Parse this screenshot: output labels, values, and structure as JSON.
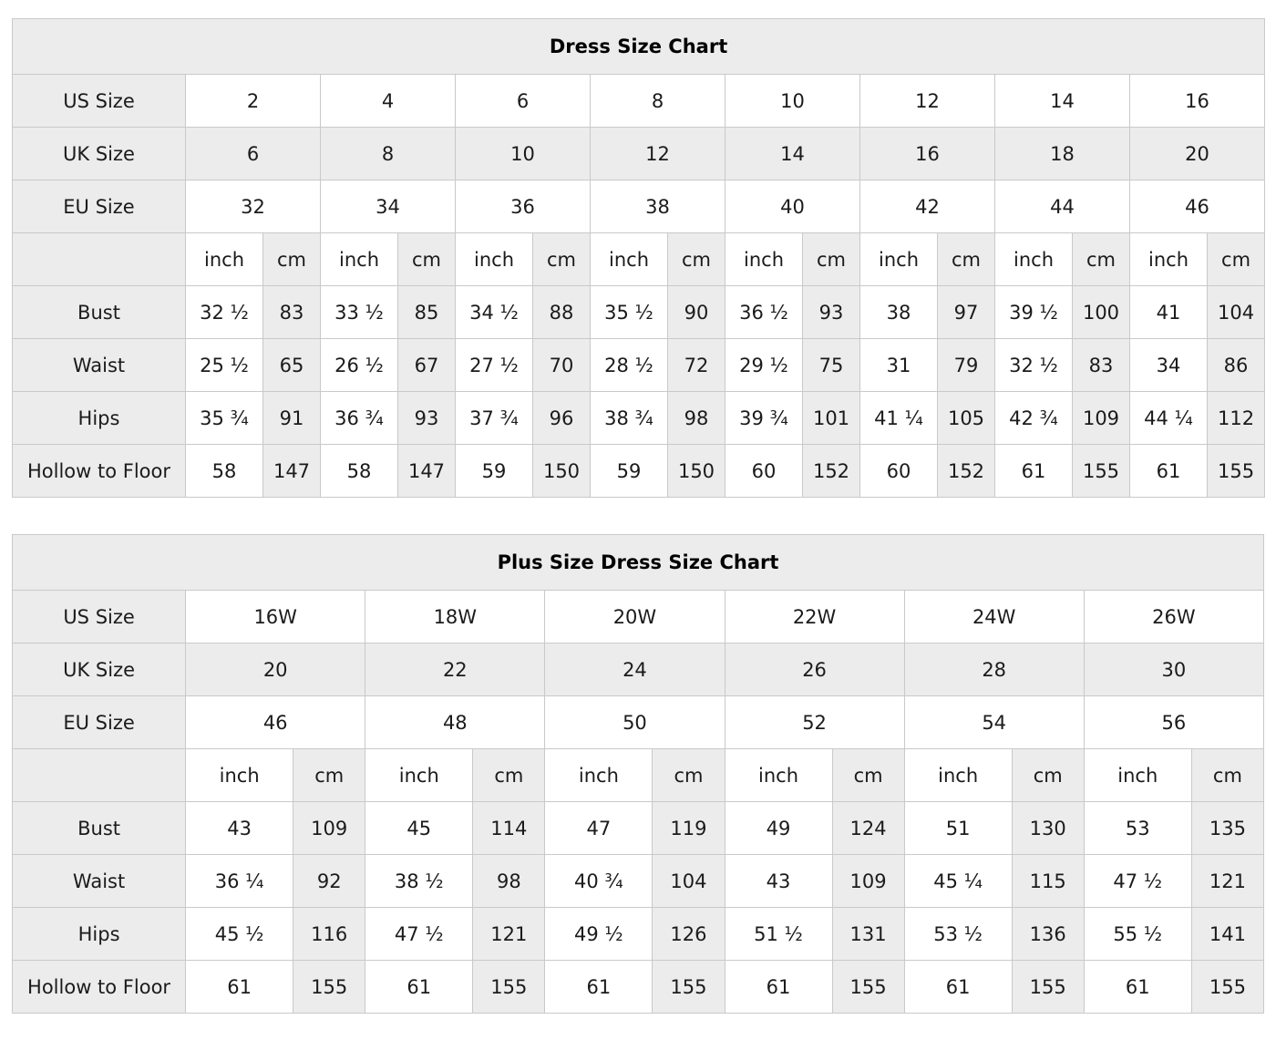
{
  "units": {
    "inch": "inch",
    "cm": "cm"
  },
  "colors": {
    "cell_shaded": "#ececec",
    "cell_white": "#ffffff",
    "border": "#c9c9c9",
    "text": "#1b1b1b"
  },
  "tables": [
    {
      "title": "Dress Size Chart",
      "unit_row_label": "",
      "size_rows": [
        {
          "label": "US Size",
          "values": [
            "2",
            "4",
            "6",
            "8",
            "10",
            "12",
            "14",
            "16"
          ]
        },
        {
          "label": "UK Size",
          "values": [
            "6",
            "8",
            "10",
            "12",
            "14",
            "16",
            "18",
            "20"
          ]
        },
        {
          "label": "EU Size",
          "values": [
            "32",
            "34",
            "36",
            "38",
            "40",
            "42",
            "44",
            "46"
          ]
        }
      ],
      "measure_rows": [
        {
          "label": "Bust",
          "pairs": [
            [
              "32 ½",
              "83"
            ],
            [
              "33 ½",
              "85"
            ],
            [
              "34 ½",
              "88"
            ],
            [
              "35 ½",
              "90"
            ],
            [
              "36 ½",
              "93"
            ],
            [
              "38",
              "97"
            ],
            [
              "39 ½",
              "100"
            ],
            [
              "41",
              "104"
            ]
          ]
        },
        {
          "label": "Waist",
          "pairs": [
            [
              "25 ½",
              "65"
            ],
            [
              "26 ½",
              "67"
            ],
            [
              "27 ½",
              "70"
            ],
            [
              "28 ½",
              "72"
            ],
            [
              "29 ½",
              "75"
            ],
            [
              "31",
              "79"
            ],
            [
              "32 ½",
              "83"
            ],
            [
              "34",
              "86"
            ]
          ]
        },
        {
          "label": "Hips",
          "pairs": [
            [
              "35 ¾",
              "91"
            ],
            [
              "36 ¾",
              "93"
            ],
            [
              "37 ¾",
              "96"
            ],
            [
              "38 ¾",
              "98"
            ],
            [
              "39 ¾",
              "101"
            ],
            [
              "41 ¼",
              "105"
            ],
            [
              "42 ¾",
              "109"
            ],
            [
              "44 ¼",
              "112"
            ]
          ]
        },
        {
          "label": "Hollow to Floor",
          "pairs": [
            [
              "58",
              "147"
            ],
            [
              "58",
              "147"
            ],
            [
              "59",
              "150"
            ],
            [
              "59",
              "150"
            ],
            [
              "60",
              "152"
            ],
            [
              "60",
              "152"
            ],
            [
              "61",
              "155"
            ],
            [
              "61",
              "155"
            ]
          ]
        }
      ]
    },
    {
      "title": "Plus Size Dress Size Chart",
      "unit_row_label": "",
      "size_rows": [
        {
          "label": "US Size",
          "values": [
            "16W",
            "18W",
            "20W",
            "22W",
            "24W",
            "26W"
          ]
        },
        {
          "label": "UK Size",
          "values": [
            "20",
            "22",
            "24",
            "26",
            "28",
            "30"
          ]
        },
        {
          "label": "EU Size",
          "values": [
            "46",
            "48",
            "50",
            "52",
            "54",
            "56"
          ]
        }
      ],
      "measure_rows": [
        {
          "label": "Bust",
          "pairs": [
            [
              "43",
              "109"
            ],
            [
              "45",
              "114"
            ],
            [
              "47",
              "119"
            ],
            [
              "49",
              "124"
            ],
            [
              "51",
              "130"
            ],
            [
              "53",
              "135"
            ]
          ]
        },
        {
          "label": "Waist",
          "pairs": [
            [
              "36 ¼",
              "92"
            ],
            [
              "38 ½",
              "98"
            ],
            [
              "40 ¾",
              "104"
            ],
            [
              "43",
              "109"
            ],
            [
              "45 ¼",
              "115"
            ],
            [
              "47 ½",
              "121"
            ]
          ]
        },
        {
          "label": "Hips",
          "pairs": [
            [
              "45 ½",
              "116"
            ],
            [
              "47 ½",
              "121"
            ],
            [
              "49 ½",
              "126"
            ],
            [
              "51 ½",
              "131"
            ],
            [
              "53 ½",
              "136"
            ],
            [
              "55 ½",
              "141"
            ]
          ]
        },
        {
          "label": "Hollow to Floor",
          "pairs": [
            [
              "61",
              "155"
            ],
            [
              "61",
              "155"
            ],
            [
              "61",
              "155"
            ],
            [
              "61",
              "155"
            ],
            [
              "61",
              "155"
            ],
            [
              "61",
              "155"
            ]
          ]
        }
      ]
    }
  ]
}
